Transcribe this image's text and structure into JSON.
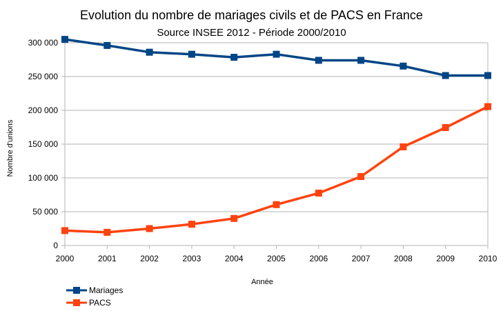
{
  "chart_data": {
    "type": "line",
    "title": "Evolution du nombre de mariages civils et de PACS en France",
    "subtitle": "Source INSEE 2012 - Période 2000/2010",
    "xlabel": "Année",
    "ylabel": "Nombre d'unions",
    "x": [
      "2000",
      "2001",
      "2002",
      "2003",
      "2004",
      "2005",
      "2006",
      "2007",
      "2008",
      "2009",
      "2010"
    ],
    "ylim": [
      0,
      300000
    ],
    "yticks": [
      0,
      50000,
      100000,
      150000,
      200000,
      250000,
      300000
    ],
    "ytick_labels": [
      "0",
      "50 000",
      "100 000",
      "150 000",
      "200 000",
      "250 000",
      "300 000"
    ],
    "grid": true,
    "legend_position": "bottom-left",
    "series": [
      {
        "name": "Mariages",
        "color": "#004586",
        "values": [
          305000,
          296000,
          286000,
          283000,
          278500,
          283000,
          274000,
          274000,
          265500,
          251500,
          251500
        ]
      },
      {
        "name": "PACS",
        "color": "#ff420e",
        "values": [
          22000,
          19500,
          25000,
          31500,
          40000,
          60500,
          77500,
          102000,
          146000,
          174500,
          205500
        ]
      }
    ]
  }
}
